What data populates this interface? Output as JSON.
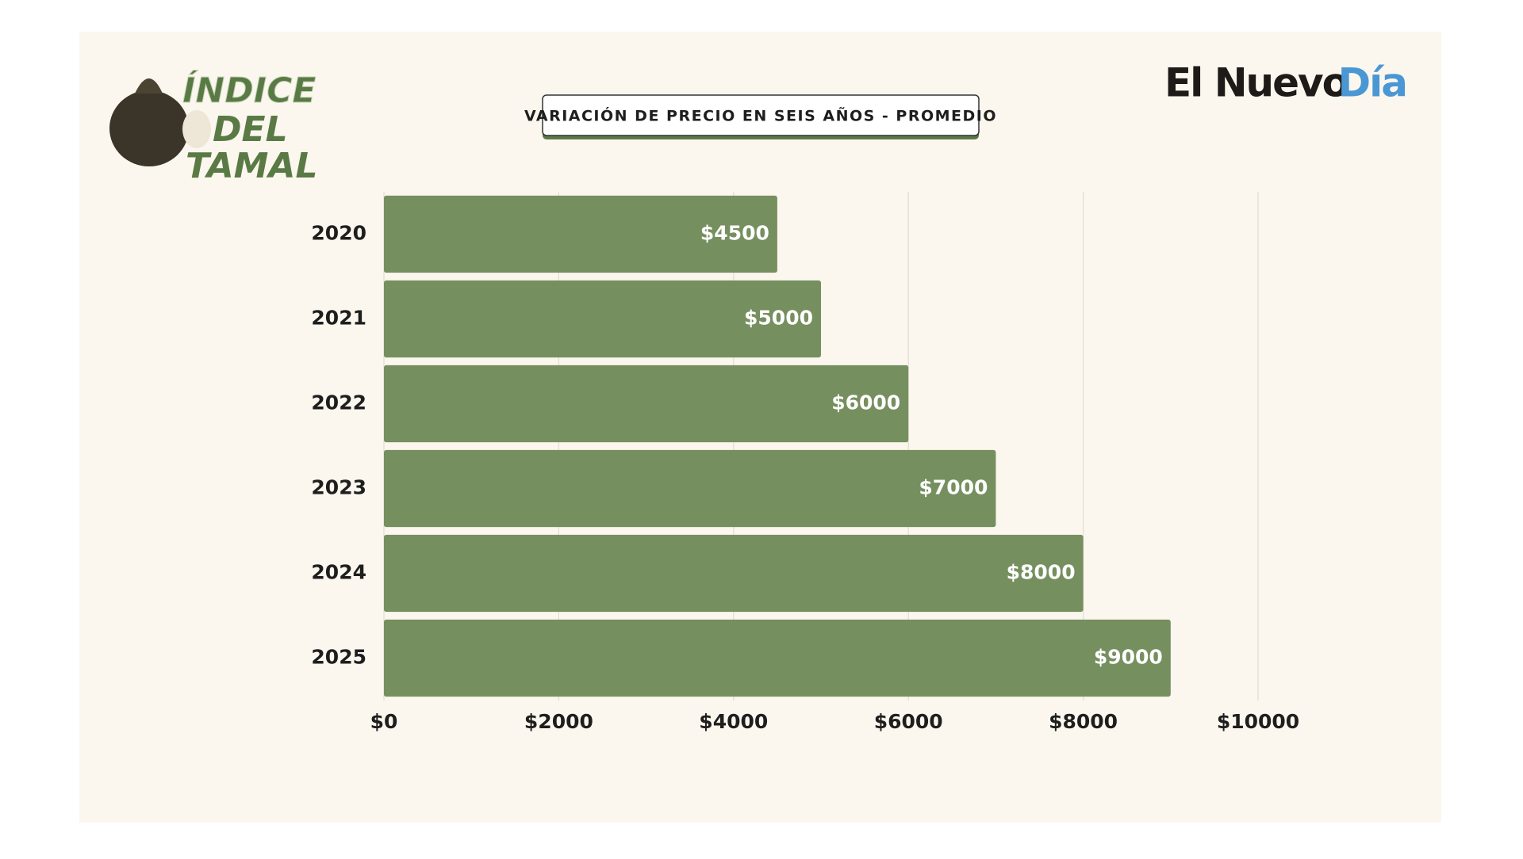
{
  "header": {
    "logo_lines": [
      "ÍNDICE",
      "DEL",
      "TAMAL"
    ],
    "brand": [
      "El Nuevo",
      "Día"
    ]
  },
  "chart_data": {
    "type": "bar",
    "orientation": "horizontal",
    "title": "VARIACIÓN DE PRECIO EN SEIS AÑOS - PROMEDIO",
    "categories": [
      "2020",
      "2021",
      "2022",
      "2023",
      "2024",
      "2025"
    ],
    "values": [
      4500,
      5000,
      6000,
      7000,
      8000,
      9000
    ],
    "value_labels": [
      "$4500",
      "$5000",
      "$6000",
      "$7000",
      "$8000",
      "$9000"
    ],
    "color": "#768f5f",
    "xlim": [
      0,
      10000
    ],
    "xticks": [
      {
        "value": 0,
        "label": "$0"
      },
      {
        "value": 2000,
        "label": "$2000"
      },
      {
        "value": 4000,
        "label": "$4000"
      },
      {
        "value": 6000,
        "label": "$6000"
      },
      {
        "value": 8000,
        "label": "$8000"
      },
      {
        "value": 10000,
        "label": "$10000"
      }
    ],
    "grid": true
  }
}
